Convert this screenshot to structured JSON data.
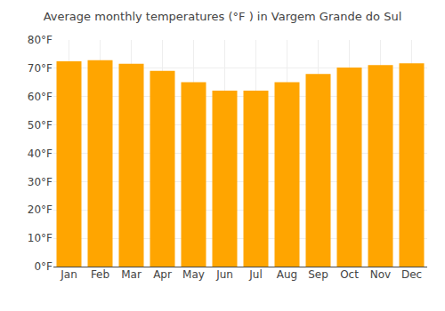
{
  "chart_data": {
    "type": "bar",
    "title": "Average monthly temperatures (°F ) in Vargem Grande do Sul",
    "categories": [
      "Jan",
      "Feb",
      "Mar",
      "Apr",
      "May",
      "Jun",
      "Jul",
      "Aug",
      "Sep",
      "Oct",
      "Nov",
      "Dec"
    ],
    "values": [
      72.5,
      72.9,
      71.6,
      69.1,
      65.1,
      62.1,
      62.1,
      65.1,
      68.0,
      70.3,
      71.1,
      71.8
    ],
    "color": "#FFA500",
    "ylim": [
      0,
      80
    ],
    "yticks": [
      {
        "value": 0,
        "label": "0°F"
      },
      {
        "value": 10,
        "label": "10°F"
      },
      {
        "value": 20,
        "label": "20°F"
      },
      {
        "value": 30,
        "label": "30°F"
      },
      {
        "value": 40,
        "label": "40°F"
      },
      {
        "value": 50,
        "label": "50°F"
      },
      {
        "value": 60,
        "label": "60°F"
      },
      {
        "value": 70,
        "label": "70°F"
      },
      {
        "value": 80,
        "label": "80°F"
      }
    ],
    "grid": true
  }
}
